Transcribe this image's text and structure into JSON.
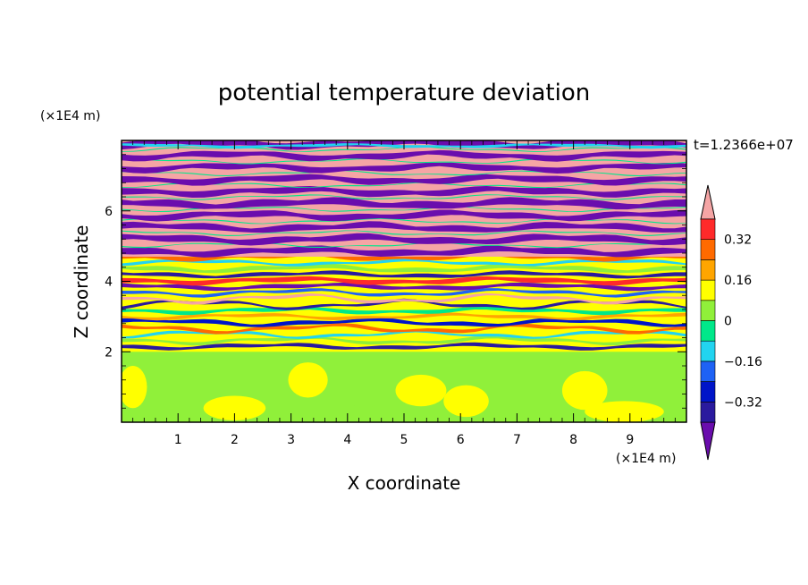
{
  "chart_data": {
    "type": "heatmap",
    "title": "potential temperature deviation",
    "xlabel": "X coordinate",
    "ylabel": "Z coordinate",
    "x_unit": "(×1E4 m)",
    "y_unit": "(×1E4 m)",
    "time_label": "t=1.2366e+07",
    "xlim": [
      0,
      10
    ],
    "ylim": [
      0,
      8
    ],
    "x_ticks": [
      "1",
      "2",
      "3",
      "4",
      "5",
      "6",
      "7",
      "8",
      "9"
    ],
    "y_ticks": [
      "2",
      "4",
      "6"
    ],
    "colorbar": {
      "levels": [
        -0.4,
        -0.32,
        -0.24,
        -0.16,
        -0.08,
        0,
        0.08,
        0.16,
        0.24,
        0.32,
        0.4
      ],
      "labels": [
        "0.32",
        "0.16",
        "0",
        "−0.16",
        "−0.32"
      ],
      "colors": [
        "#6a0dad",
        "#2a1a9e",
        "#0015c8",
        "#1e62f5",
        "#22d4f0",
        "#00e88a",
        "#90f03a",
        "#ffff00",
        "#ffa500",
        "#ff6a00",
        "#ff2a2a",
        "#f5a5a5"
      ],
      "extend": "both"
    },
    "lower_layer": {
      "z_top": 2.0,
      "dominant_values": [
        0.0,
        0.04
      ]
    }
  }
}
